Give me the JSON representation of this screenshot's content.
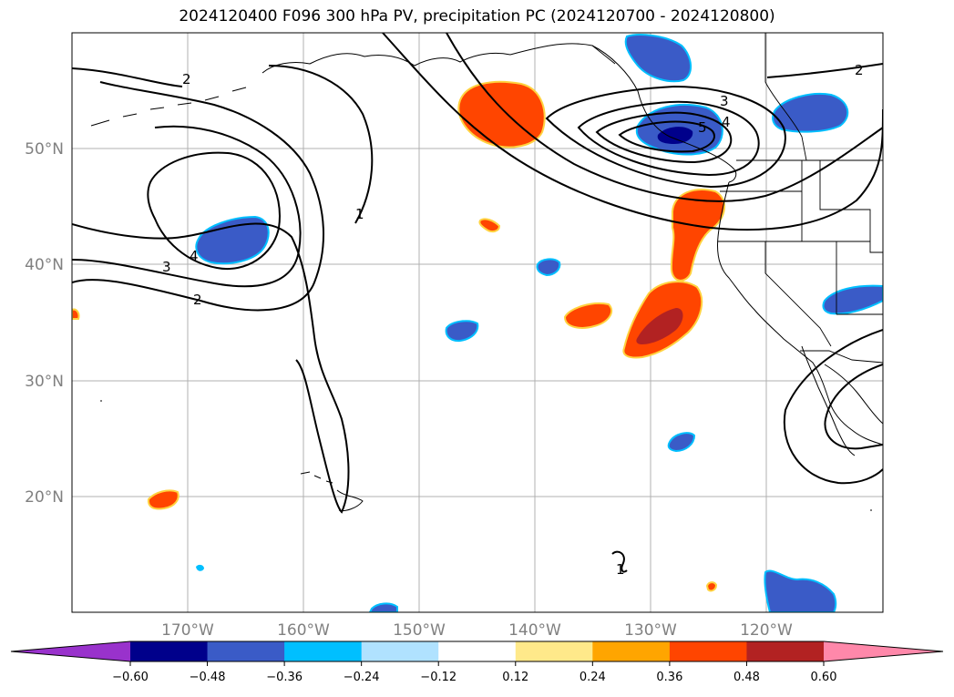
{
  "title": "2024120400 F096 300 hPa PV, precipitation PC (2024120700 - 2024120800)",
  "map": {
    "lat_ticks": [
      "50°N",
      "40°N",
      "30°N",
      "20°N"
    ],
    "lon_ticks": [
      "170°W",
      "160°W",
      "150°W",
      "140°W",
      "130°W",
      "120°W"
    ],
    "contour_labels": [
      "2",
      "1",
      "3",
      "4",
      "2",
      "3",
      "4",
      "5",
      "2",
      "1"
    ]
  },
  "colorbar": {
    "ticks": [
      "−0.60",
      "−0.48",
      "−0.36",
      "−0.24",
      "−0.12",
      "0.12",
      "0.24",
      "0.36",
      "0.48",
      "0.60"
    ],
    "colors": [
      "#9932cc",
      "#00008b",
      "#3a5bc7",
      "#00bfff",
      "#b0e2ff",
      "#ffffff",
      "#ffe98a",
      "#ffa500",
      "#ff4500",
      "#b22222",
      "#ff88aa"
    ]
  },
  "colors": {
    "neg_dark": "#00008b",
    "neg_mid": "#3a5bc7",
    "neg_light": "#00bfff",
    "pos_mid": "#ff4500",
    "pos_dark": "#b22222",
    "pos_light": "#ffa500"
  }
}
